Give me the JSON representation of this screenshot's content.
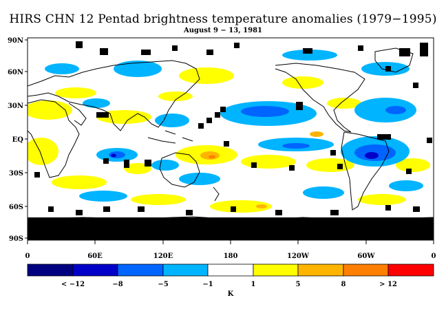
{
  "title": "HIRS CHN 12 Pentad brightness temperature anomalies (1979−1995)",
  "subtitle": "August 9 − 13, 1981",
  "y_ticks": [
    "90N",
    "60N",
    "30N",
    "EQ",
    "30S",
    "60S",
    "90S"
  ],
  "x_ticks": [
    "0",
    "60E",
    "120E",
    "180",
    "120W",
    "60W",
    "0"
  ],
  "colorbar": {
    "colors": [
      "#000080",
      "#0000c8",
      "#0064ff",
      "#00b4ff",
      "#ffffff",
      "#ffff00",
      "#ffb400",
      "#ff8000",
      "#ff0000"
    ],
    "labels": [
      "< −12",
      "−8",
      "−5",
      "−1",
      "1",
      "5",
      "8",
      "> 12"
    ],
    "unit": "K"
  },
  "colors": {
    "missing": "#000000",
    "coast": "#000000"
  }
}
